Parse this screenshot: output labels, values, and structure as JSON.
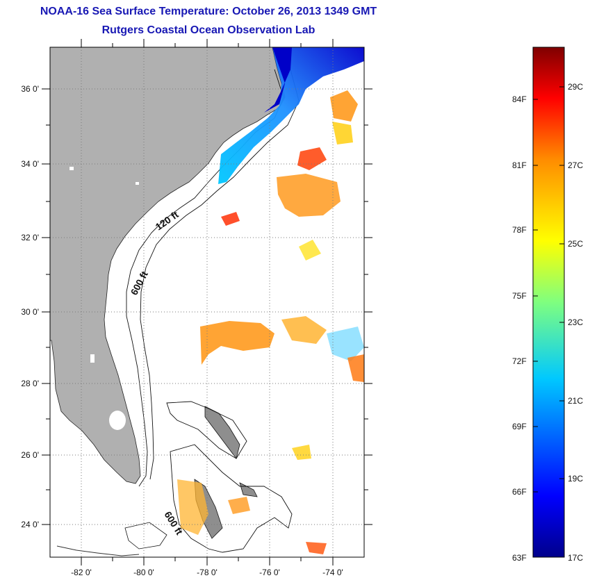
{
  "title": {
    "line1": "NOAA-16 Sea Surface Temperature:  October 26, 2013 1349 GMT",
    "line2": "Rutgers Coastal Ocean Observation Lab"
  },
  "map": {
    "lon_range": [
      -83,
      -73
    ],
    "lat_range": [
      23,
      37
    ],
    "lat_labels": [
      "36 0'",
      "34 0'",
      "32 0'",
      "30 0'",
      "28 0'",
      "26 0'",
      "24 0'"
    ],
    "lon_labels": [
      "-82 0'",
      "-80 0'",
      "-78 0'",
      "-76 0'",
      "-74 0'"
    ],
    "contour_labels": [
      "120 ft",
      "600 ft",
      "600 ft"
    ],
    "colors": {
      "land": "#b0b0b0",
      "grid": "#7a7a7a"
    }
  },
  "colorbar": {
    "fahrenheit_labels": [
      "84F",
      "81F",
      "78F",
      "75F",
      "72F",
      "69F",
      "66F",
      "63F"
    ],
    "celsius_labels": [
      "29C",
      "27C",
      "25C",
      "23C",
      "21C",
      "19C",
      "17C"
    ],
    "range_c": [
      17,
      30
    ],
    "colormap": "jet"
  }
}
